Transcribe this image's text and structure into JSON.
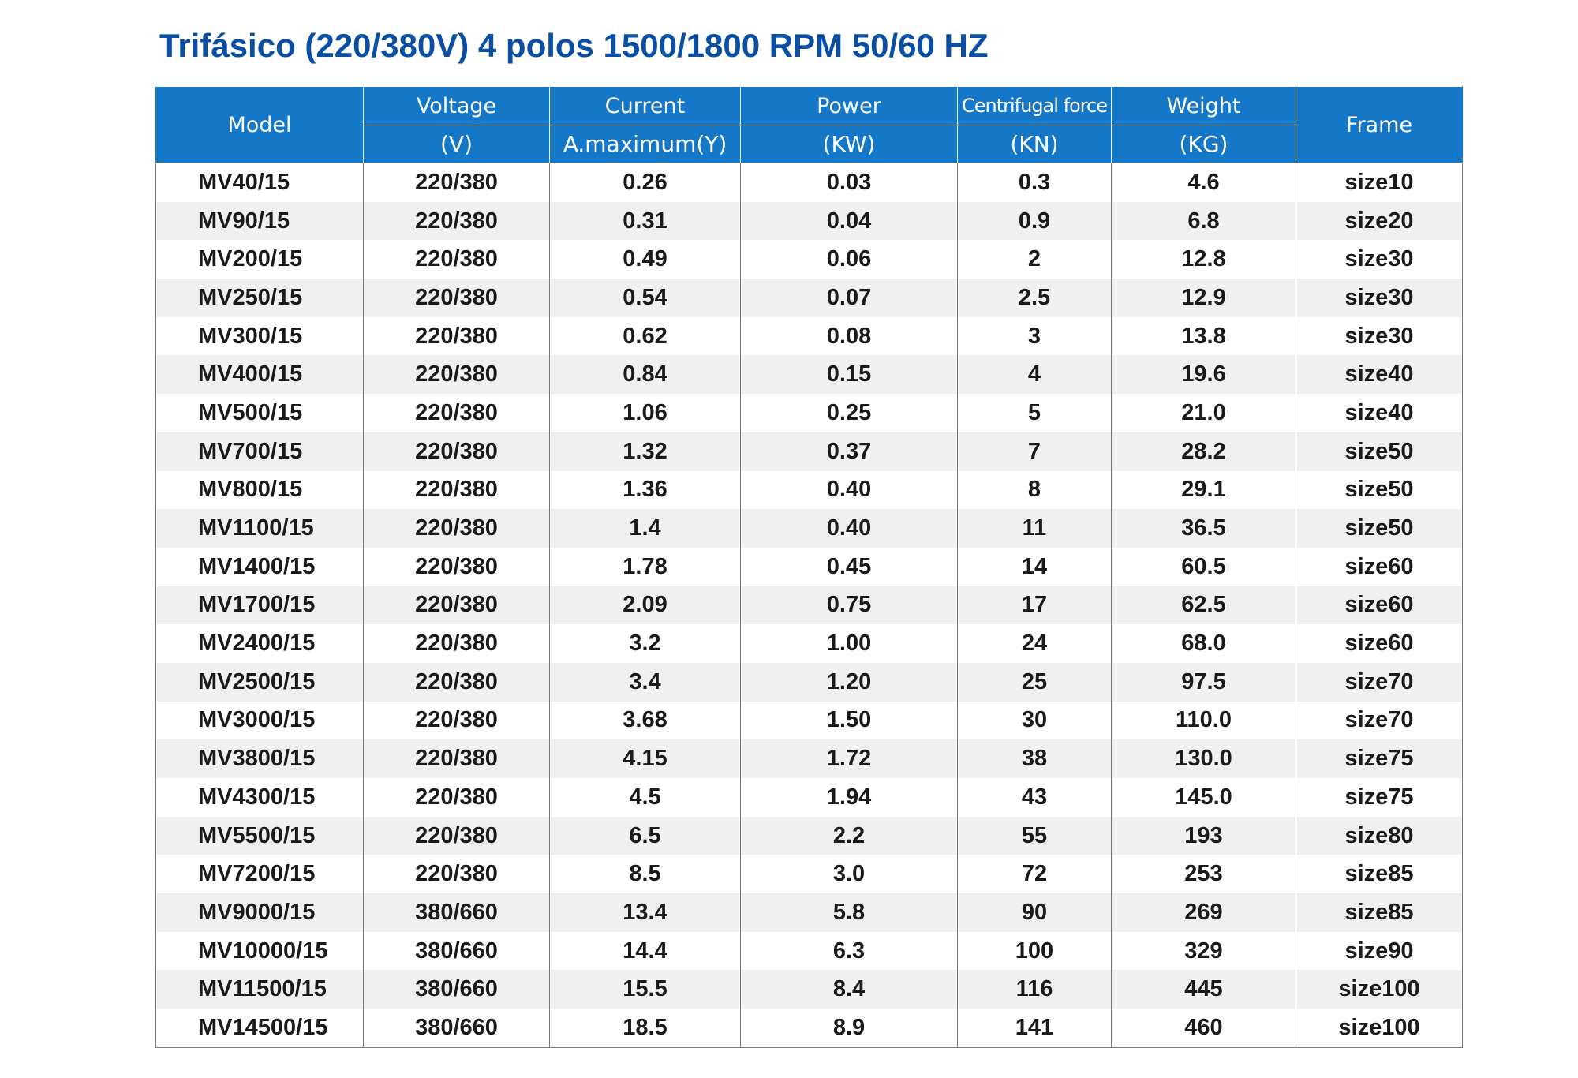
{
  "title": "Trifásico (220/380V) 4 polos 1500/1800 RPM 50/60 HZ",
  "colors": {
    "title": "#0a4fa3",
    "header_bg": "#1477c8",
    "header_text": "#ffffff",
    "zebra": "#f0f0f0"
  },
  "header": {
    "model": "Model",
    "voltage": "Voltage",
    "voltage_unit": "(V)",
    "current": "Current",
    "current_unit": "A.maximum(Y)",
    "power": "Power",
    "power_unit": "(KW)",
    "centrifugal": "Centrifugal force",
    "centrifugal_unit": "(KN)",
    "weight": "Weight",
    "weight_unit": "(KG)",
    "frame": "Frame"
  },
  "rows": [
    [
      "MV40/15",
      "220/380",
      "0.26",
      "0.03",
      "0.3",
      "4.6",
      "size10"
    ],
    [
      "MV90/15",
      "220/380",
      "0.31",
      "0.04",
      "0.9",
      "6.8",
      "size20"
    ],
    [
      "MV200/15",
      "220/380",
      "0.49",
      "0.06",
      "2",
      "12.8",
      "size30"
    ],
    [
      "MV250/15",
      "220/380",
      "0.54",
      "0.07",
      "2.5",
      "12.9",
      "size30"
    ],
    [
      "MV300/15",
      "220/380",
      "0.62",
      "0.08",
      "3",
      "13.8",
      "size30"
    ],
    [
      "MV400/15",
      "220/380",
      "0.84",
      "0.15",
      "4",
      "19.6",
      "size40"
    ],
    [
      "MV500/15",
      "220/380",
      "1.06",
      "0.25",
      "5",
      "21.0",
      "size40"
    ],
    [
      "MV700/15",
      "220/380",
      "1.32",
      "0.37",
      "7",
      "28.2",
      "size50"
    ],
    [
      "MV800/15",
      "220/380",
      "1.36",
      "0.40",
      "8",
      "29.1",
      "size50"
    ],
    [
      "MV1100/15",
      "220/380",
      "1.4",
      "0.40",
      "11",
      "36.5",
      "size50"
    ],
    [
      "MV1400/15",
      "220/380",
      "1.78",
      "0.45",
      "14",
      "60.5",
      "size60"
    ],
    [
      "MV1700/15",
      "220/380",
      "2.09",
      "0.75",
      "17",
      "62.5",
      "size60"
    ],
    [
      "MV2400/15",
      "220/380",
      "3.2",
      "1.00",
      "24",
      "68.0",
      "size60"
    ],
    [
      "MV2500/15",
      "220/380",
      "3.4",
      "1.20",
      "25",
      "97.5",
      "size70"
    ],
    [
      "MV3000/15",
      "220/380",
      "3.68",
      "1.50",
      "30",
      "110.0",
      "size70"
    ],
    [
      "MV3800/15",
      "220/380",
      "4.15",
      "1.72",
      "38",
      "130.0",
      "size75"
    ],
    [
      "MV4300/15",
      "220/380",
      "4.5",
      "1.94",
      "43",
      "145.0",
      "size75"
    ],
    [
      "MV5500/15",
      "220/380",
      "6.5",
      "2.2",
      "55",
      "193",
      "size80"
    ],
    [
      "MV7200/15",
      "220/380",
      "8.5",
      "3.0",
      "72",
      "253",
      "size85"
    ],
    [
      "MV9000/15",
      "380/660",
      "13.4",
      "5.8",
      "90",
      "269",
      "size85"
    ],
    [
      "MV10000/15",
      "380/660",
      "14.4",
      "6.3",
      "100",
      "329",
      "size90"
    ],
    [
      "MV11500/15",
      "380/660",
      "15.5",
      "8.4",
      "116",
      "445",
      "size100"
    ],
    [
      "MV14500/15",
      "380/660",
      "18.5",
      "8.9",
      "141",
      "460",
      "size100"
    ]
  ]
}
